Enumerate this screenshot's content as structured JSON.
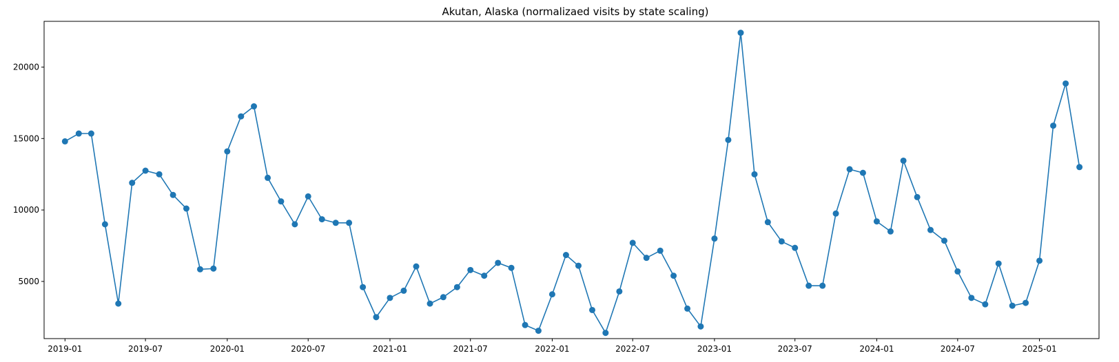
{
  "chart_data": {
    "type": "line",
    "title": "Akutan, Alaska (normalizaed visits by state scaling)",
    "xlabel": "",
    "ylabel": "",
    "grid": false,
    "legend": "none",
    "color": "#1f77b4",
    "marker": "circle",
    "x_tick_labels": [
      "2019-01",
      "2019-07",
      "2020-01",
      "2020-07",
      "2021-01",
      "2021-07",
      "2022-01",
      "2022-07",
      "2023-01",
      "2023-07",
      "2024-01",
      "2024-07",
      "2025-01"
    ],
    "y_ticks": [
      5000,
      10000,
      15000,
      20000
    ],
    "xlim": [
      "2018-11-15",
      "2025-05-15"
    ],
    "ylim": [
      1000,
      23200
    ],
    "x": [
      "2019-01",
      "2019-02",
      "2019-03",
      "2019-04",
      "2019-05",
      "2019-06",
      "2019-07",
      "2019-08",
      "2019-09",
      "2019-10",
      "2019-11",
      "2019-12",
      "2020-01",
      "2020-02",
      "2020-03",
      "2020-04",
      "2020-05",
      "2020-06",
      "2020-07",
      "2020-08",
      "2020-09",
      "2020-10",
      "2020-11",
      "2020-12",
      "2021-01",
      "2021-02",
      "2021-03",
      "2021-04",
      "2021-05",
      "2021-06",
      "2021-07",
      "2021-08",
      "2021-09",
      "2021-10",
      "2021-11",
      "2021-12",
      "2022-01",
      "2022-02",
      "2022-03",
      "2022-04",
      "2022-05",
      "2022-06",
      "2022-07",
      "2022-08",
      "2022-09",
      "2022-10",
      "2022-11",
      "2022-12",
      "2023-01",
      "2023-02",
      "2023-03",
      "2023-04",
      "2023-05",
      "2023-06",
      "2023-07",
      "2023-08",
      "2023-09",
      "2023-10",
      "2023-11",
      "2023-12",
      "2024-01",
      "2024-02",
      "2024-03",
      "2024-04",
      "2024-05",
      "2024-06",
      "2024-07",
      "2024-08",
      "2024-09",
      "2024-10",
      "2024-11",
      "2024-12",
      "2025-01",
      "2025-02",
      "2025-03",
      "2025-04"
    ],
    "y": [
      14800,
      15350,
      15350,
      9000,
      3450,
      11900,
      12750,
      12500,
      11050,
      10100,
      5850,
      5900,
      14100,
      16550,
      17250,
      12250,
      10600,
      9000,
      10950,
      9350,
      9100,
      9100,
      4600,
      2500,
      3850,
      4350,
      6050,
      3450,
      3900,
      4600,
      5800,
      5400,
      6300,
      5950,
      1950,
      1550,
      4100,
      6850,
      6100,
      3000,
      1400,
      4300,
      7700,
      6650,
      7150,
      5400,
      3100,
      1850,
      8000,
      14900,
      22400,
      12500,
      9150,
      7800,
      7350,
      4700,
      4700,
      9750,
      12850,
      12600,
      9200,
      8500,
      13450,
      10900,
      8600,
      7850,
      5700,
      3850,
      3400,
      6250,
      3300,
      3500,
      6450,
      15900,
      18850,
      13000
    ]
  }
}
